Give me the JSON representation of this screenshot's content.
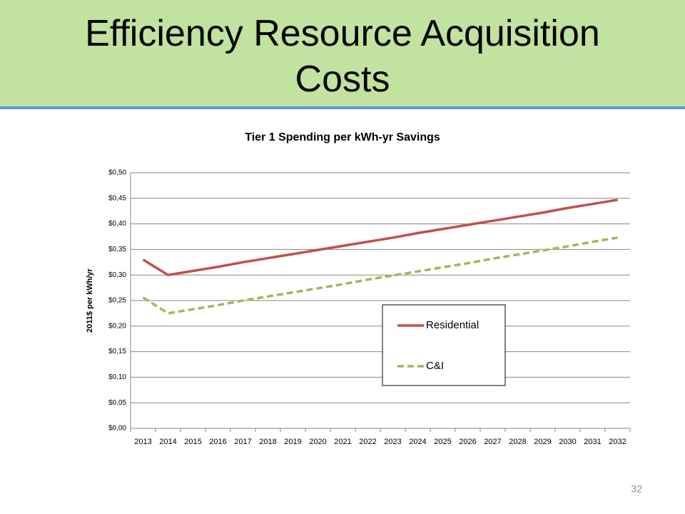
{
  "slide_title": "Efficiency Resource Acquisition Costs",
  "page_number": "32",
  "chart_data": {
    "type": "line",
    "title": "Tier 1 Spending per kWh-yr Savings",
    "y_label": "2011$ per kWh/yr",
    "categories": [
      "2013",
      "2014",
      "2015",
      "2016",
      "2017",
      "2018",
      "2019",
      "2020",
      "2021",
      "2022",
      "2023",
      "2024",
      "2025",
      "2026",
      "2027",
      "2028",
      "2029",
      "2030",
      "2031",
      "2032"
    ],
    "series": [
      {
        "name": "Residential",
        "color": "#c0504d",
        "dash": false,
        "values": [
          0.33,
          0.3,
          0.308,
          0.316,
          0.325,
          0.333,
          0.341,
          0.349,
          0.357,
          0.365,
          0.373,
          0.382,
          0.39,
          0.398,
          0.406,
          0.414,
          0.422,
          0.431,
          0.439,
          0.447
        ]
      },
      {
        "name": "C&I",
        "color": "#9bbb59",
        "dash": true,
        "values": [
          0.256,
          0.225,
          0.233,
          0.241,
          0.25,
          0.258,
          0.266,
          0.274,
          0.282,
          0.291,
          0.299,
          0.307,
          0.315,
          0.323,
          0.332,
          0.34,
          0.348,
          0.356,
          0.365,
          0.373
        ]
      }
    ],
    "ylim": [
      0,
      0.5
    ],
    "yticks": [
      {
        "value": 0,
        "label": "$0,00"
      },
      {
        "value": 0.05,
        "label": "$0,05"
      },
      {
        "value": 0.1,
        "label": "$0,10"
      },
      {
        "value": 0.15,
        "label": "$0,15"
      },
      {
        "value": 0.2,
        "label": "$0,20"
      },
      {
        "value": 0.25,
        "label": "$0,25"
      },
      {
        "value": 0.3,
        "label": "$0,30"
      },
      {
        "value": 0.35,
        "label": "$0,35"
      },
      {
        "value": 0.4,
        "label": "$0,40"
      },
      {
        "value": 0.45,
        "label": "$0,45"
      },
      {
        "value": 0.5,
        "label": "$0,50"
      }
    ],
    "grid": true
  }
}
